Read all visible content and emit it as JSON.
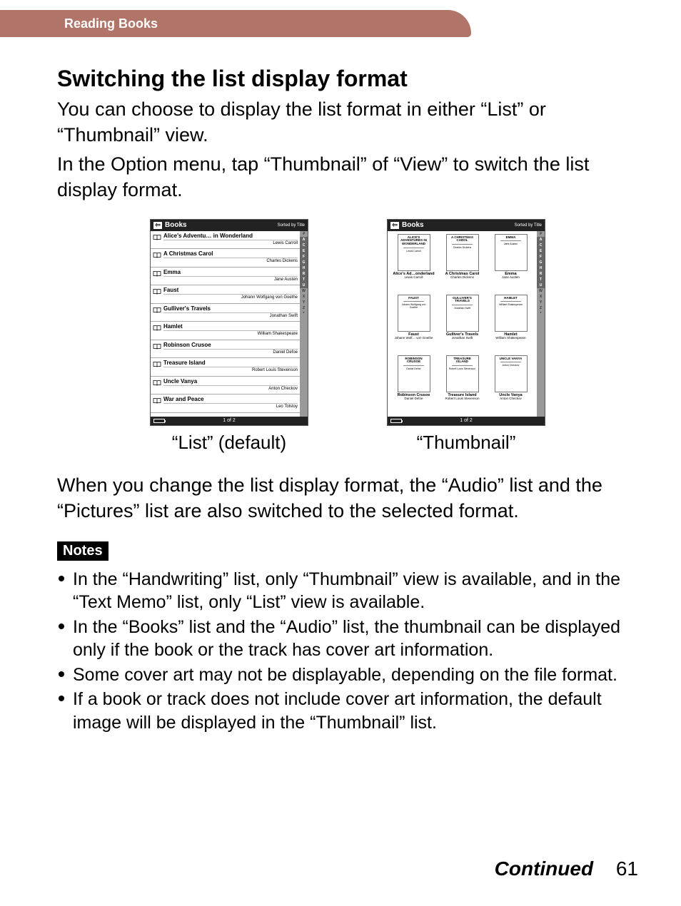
{
  "header": {
    "section": "Reading Books"
  },
  "main": {
    "title": "Switching the list display format",
    "para1": "You can choose to display the list format in either “List” or “Thumbnail” view.",
    "para2": "In the Option menu, tap “Thumbnail” of “View” to switch the list display format.",
    "after_shots": "When you change the list display format, the “Audio” list and the “Pictures” list are also switched to the selected format.",
    "notes_label": "Notes",
    "notes": [
      "In the “Handwriting” list, only “Thumbnail” view is available, and in the “Text Memo” list, only “List” view is available.",
      "In the “Books” list and the “Audio” list, the thumbnail can be displayed only if the book or the track has cover art information.",
      "Some cover art may not be displayable, depending on the file format.",
      "If a book or track does not include cover art information, the default image will be displayed in the “Thumbnail” list."
    ]
  },
  "captions": {
    "list": "“List” (default)",
    "thumb": "“Thumbnail”"
  },
  "device": {
    "app_title": "Books",
    "sorted_by": "Sorted by Title",
    "page_indicator": "1 of 2",
    "index_letters": [
      "#",
      "A",
      "C",
      "E",
      "F",
      "G",
      "H",
      "R",
      "T",
      "U",
      "W",
      "X",
      "Y",
      "Z",
      "*"
    ],
    "index_dark": [
      "A",
      "C",
      "E",
      "F",
      "G",
      "H",
      "R",
      "T",
      "U"
    ],
    "books": [
      {
        "title": "Alice's Adventu… in Wonderland",
        "author": "Lewis Carroll",
        "short": "Alice's Ad…onderland",
        "cover_t": "ALICE'S ADVENTURES IN WONDERLAND"
      },
      {
        "title": "A Christmas Carol",
        "author": "Charles Dickens",
        "short": "A Christmas Carol",
        "cover_t": "A CHRISTMAS CAROL"
      },
      {
        "title": "Emma",
        "author": "Jane Austen",
        "short": "Emma",
        "cover_t": "EMMA"
      },
      {
        "title": "Faust",
        "author": "Johann Wolfgang von Goethe",
        "short": "Faust",
        "cover_t": "FAUST",
        "short_auth": "Johann Wolf… von Goethe"
      },
      {
        "title": "Gulliver's Travels",
        "author": "Jonathan Swift",
        "short": "Gulliver's Travels",
        "cover_t": "GULLIVER'S TRAVELS"
      },
      {
        "title": "Hamlet",
        "author": "William Shakespeare",
        "short": "Hamlet",
        "cover_t": "HAMLET"
      },
      {
        "title": "Robinson Crusoe",
        "author": "Daniel Defoe",
        "short": "Robinson Crusoe",
        "cover_t": "ROBINSON CRUSOE"
      },
      {
        "title": "Treasure Island",
        "author": "Robert Louis Stevenson",
        "short": "Treasure Island",
        "cover_t": "TREASURE ISLAND"
      },
      {
        "title": "Uncle Vanya",
        "author": "Anton Checkov",
        "short": "Uncle Vanya",
        "cover_t": "UNCLE VANYA"
      },
      {
        "title": "War and Peace",
        "author": "Leo Tolstoy",
        "short": "",
        "cover_t": ""
      }
    ]
  },
  "footer": {
    "continued": "Continued",
    "page": "61"
  },
  "colors": {
    "header_bg": "#b07468",
    "notes_bg": "#000000",
    "device_header_bg": "#222222"
  }
}
